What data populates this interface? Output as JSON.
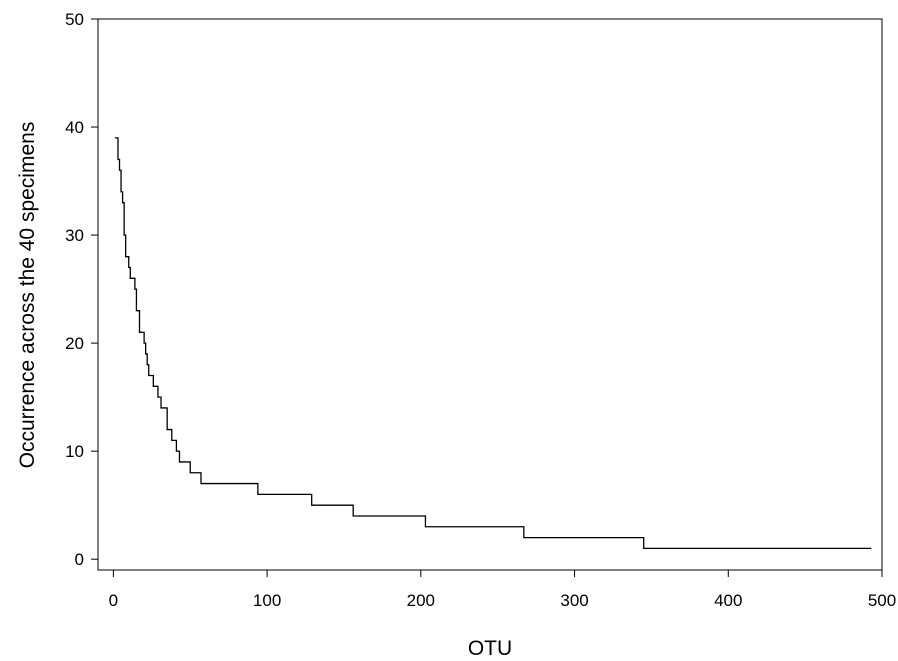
{
  "chart_data": {
    "type": "line",
    "line_style": "step",
    "title": "",
    "xlabel": "OTU",
    "ylabel": "Occurrence across the 40 specimens",
    "xlim": [
      -10,
      500
    ],
    "ylim": [
      -1,
      50
    ],
    "xticks": [
      0,
      100,
      200,
      300,
      400,
      500
    ],
    "yticks": [
      0,
      10,
      20,
      30,
      40,
      50
    ],
    "grid": false,
    "legend": "none",
    "colors": {
      "line": "#000000",
      "axes": "#000000",
      "background": "#ffffff"
    },
    "series": [
      {
        "values": [
          [
            1,
            39
          ],
          [
            3,
            37
          ],
          [
            4,
            36
          ],
          [
            5,
            34
          ],
          [
            6,
            33
          ],
          [
            7,
            30
          ],
          [
            8,
            28
          ],
          [
            10,
            27
          ],
          [
            11,
            26
          ],
          [
            14,
            25
          ],
          [
            15,
            23
          ],
          [
            17,
            21
          ],
          [
            20,
            20
          ],
          [
            21,
            19
          ],
          [
            22,
            18
          ],
          [
            23,
            17
          ],
          [
            26,
            16
          ],
          [
            29,
            15
          ],
          [
            31,
            14
          ],
          [
            35,
            12
          ],
          [
            38,
            11
          ],
          [
            41,
            10
          ],
          [
            43,
            9
          ],
          [
            50,
            8
          ],
          [
            57,
            7
          ],
          [
            94,
            6
          ],
          [
            129,
            5
          ],
          [
            156,
            4
          ],
          [
            203,
            3
          ],
          [
            267,
            2
          ],
          [
            345,
            1
          ],
          [
            493,
            1
          ]
        ]
      }
    ]
  }
}
